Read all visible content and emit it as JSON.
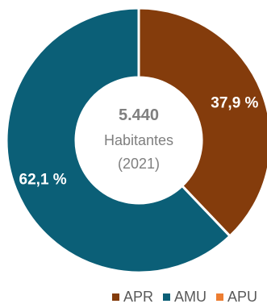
{
  "chart_data": {
    "type": "pie",
    "donut": true,
    "center": {
      "value": "5.440",
      "line1": "Habitantes",
      "line2": "(2021)"
    },
    "slices": [
      {
        "name": "APR",
        "value": 37.9,
        "label": "37,9 %",
        "color": "#843c0c"
      },
      {
        "name": "AMU",
        "value": 62.1,
        "label": "62,1 %",
        "color": "#0b5f77"
      },
      {
        "name": "APU",
        "value": 0,
        "label": "",
        "color": "#ed7d31"
      }
    ],
    "legend": {
      "position": "bottom",
      "items": [
        {
          "name": "APR",
          "color": "#843c0c"
        },
        {
          "name": "AMU",
          "color": "#0b5f77"
        },
        {
          "name": "APU",
          "color": "#ed7d31"
        }
      ]
    }
  }
}
